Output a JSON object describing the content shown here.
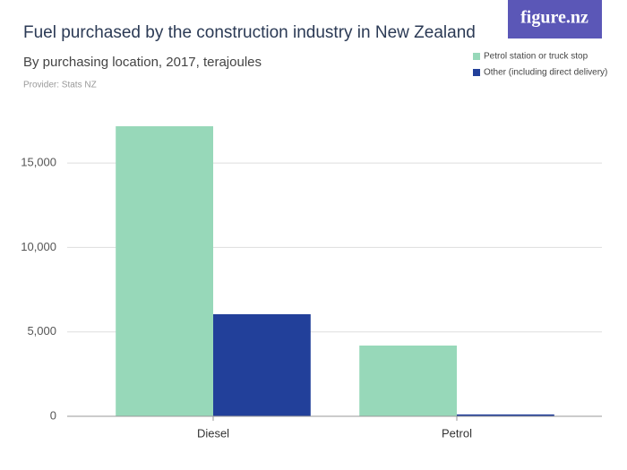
{
  "logo": "figure.nz",
  "chart_data": {
    "type": "bar",
    "title": "Fuel purchased by the construction industry in New Zealand",
    "subtitle": "By purchasing location, 2017, terajoules",
    "provider": "Provider: Stats NZ",
    "categories": [
      "Diesel",
      "Petrol"
    ],
    "series": [
      {
        "name": "Petrol station or truck stop",
        "color": "#97d8b9",
        "values": [
          17180,
          4190
        ]
      },
      {
        "name": "Other (including direct delivery)",
        "color": "#22409a",
        "values": [
          6045,
          110
        ]
      }
    ],
    "ylim": [
      0,
      17500
    ],
    "yticks": [
      0,
      {
        "value": 5000,
        "label": "5,000"
      },
      {
        "value": 10000,
        "label": "10,000"
      },
      {
        "value": 15000,
        "label": "15,000"
      }
    ],
    "grid": true,
    "legend": "top-right"
  }
}
